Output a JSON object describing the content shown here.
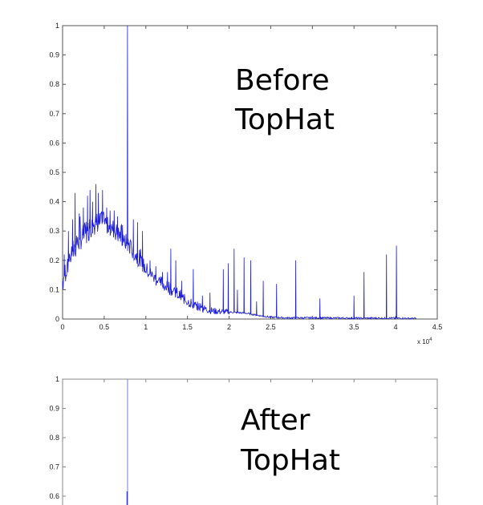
{
  "chart_data": [
    {
      "type": "line",
      "title": "",
      "annotation": [
        "Before",
        "TopHat"
      ],
      "xlabel": "",
      "ylabel": "",
      "x_multiplier": "x 10",
      "x_multiplier_exp": "4",
      "xlim": [
        0,
        4.5
      ],
      "ylim": [
        0,
        1
      ],
      "xticks": [
        "0",
        "0.5",
        "1",
        "1.5",
        "2",
        "2.5",
        "3",
        "3.5",
        "4",
        "4.5"
      ],
      "yticks": [
        "0",
        "0.1",
        "0.2",
        "0.3",
        "0.4",
        "0.5",
        "0.6",
        "0.7",
        "0.8",
        "0.9",
        "1"
      ],
      "grid": false,
      "line_color": "#1a1adb",
      "baseline": [
        [
          0,
          0.13
        ],
        [
          0.05,
          0.18
        ],
        [
          0.1,
          0.22
        ],
        [
          0.2,
          0.27
        ],
        [
          0.3,
          0.3
        ],
        [
          0.4,
          0.33
        ],
        [
          0.5,
          0.33
        ],
        [
          0.6,
          0.31
        ],
        [
          0.7,
          0.28
        ],
        [
          0.8,
          0.25
        ],
        [
          0.9,
          0.21
        ],
        [
          1.0,
          0.17
        ],
        [
          1.1,
          0.14
        ],
        [
          1.2,
          0.12
        ],
        [
          1.3,
          0.1
        ],
        [
          1.4,
          0.08
        ],
        [
          1.5,
          0.06
        ],
        [
          1.6,
          0.045
        ],
        [
          1.7,
          0.035
        ],
        [
          1.8,
          0.028
        ],
        [
          1.9,
          0.025
        ],
        [
          2.0,
          0.024
        ],
        [
          2.1,
          0.022
        ],
        [
          2.2,
          0.02
        ],
        [
          2.3,
          0.015
        ],
        [
          2.4,
          0.01
        ],
        [
          2.5,
          0.006
        ],
        [
          2.7,
          0.004
        ],
        [
          3.0,
          0.004
        ],
        [
          3.5,
          0.003
        ],
        [
          4.0,
          0.003
        ],
        [
          4.25,
          0.002
        ]
      ],
      "peaks": [
        [
          0.02,
          0.22
        ],
        [
          0.07,
          0.3
        ],
        [
          0.12,
          0.34
        ],
        [
          0.15,
          0.43
        ],
        [
          0.2,
          0.36
        ],
        [
          0.25,
          0.38
        ],
        [
          0.3,
          0.42
        ],
        [
          0.33,
          0.44
        ],
        [
          0.36,
          0.4
        ],
        [
          0.4,
          0.46
        ],
        [
          0.43,
          0.43
        ],
        [
          0.48,
          0.44
        ],
        [
          0.53,
          0.38
        ],
        [
          0.57,
          0.37
        ],
        [
          0.62,
          0.37
        ],
        [
          0.66,
          0.35
        ],
        [
          0.72,
          0.32
        ],
        [
          0.78,
          1.0
        ],
        [
          0.85,
          0.34
        ],
        [
          0.9,
          0.33
        ],
        [
          0.96,
          0.3
        ],
        [
          1.05,
          0.2
        ],
        [
          1.12,
          0.18
        ],
        [
          1.2,
          0.16
        ],
        [
          1.26,
          0.16
        ],
        [
          1.3,
          0.24
        ],
        [
          1.36,
          0.2
        ],
        [
          1.43,
          0.13
        ],
        [
          1.57,
          0.17
        ],
        [
          1.68,
          0.08
        ],
        [
          1.77,
          0.09
        ],
        [
          1.93,
          0.17
        ],
        [
          1.99,
          0.19
        ],
        [
          2.06,
          0.24
        ],
        [
          2.1,
          0.1
        ],
        [
          2.18,
          0.21
        ],
        [
          2.26,
          0.2
        ],
        [
          2.33,
          0.06
        ],
        [
          2.41,
          0.13
        ],
        [
          2.57,
          0.12
        ],
        [
          2.8,
          0.2
        ],
        [
          3.09,
          0.07
        ],
        [
          3.5,
          0.08
        ],
        [
          3.62,
          0.16
        ],
        [
          3.89,
          0.22
        ],
        [
          4.01,
          0.25
        ]
      ]
    },
    {
      "type": "line",
      "title": "",
      "annotation": [
        "After",
        "TopHat"
      ],
      "xlabel": "",
      "ylabel": "",
      "xlim": [
        0,
        4.5
      ],
      "ylim_visible": [
        0.58,
        1
      ],
      "yticks": [
        "0.6",
        "0.7",
        "0.8",
        "0.9",
        "1"
      ],
      "grid": false,
      "line_color": "#3a3ad0",
      "peaks": [
        [
          0.78,
          1.0
        ]
      ],
      "peak_secondary": [
        [
          0.77,
          0.62
        ]
      ]
    }
  ]
}
